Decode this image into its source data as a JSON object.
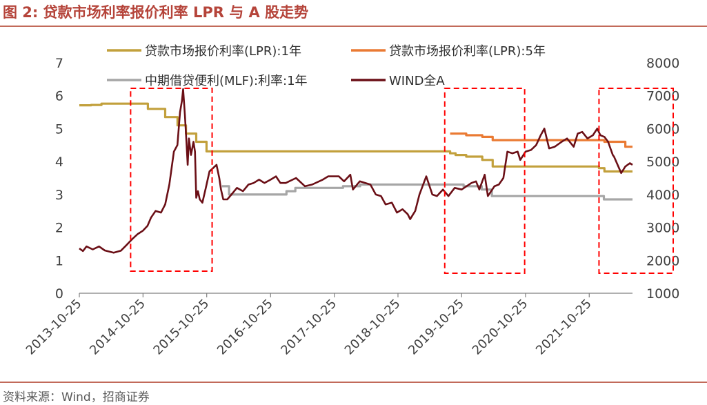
{
  "figure_title": "图 2:  贷款市场利率报价利率 LPR 与 A 股走势",
  "source": "资料来源：Wind，招商证券",
  "colors": {
    "lpr1y": "#c2a03c",
    "lpr5y": "#ea7a33",
    "mlf": "#a6a6a6",
    "wind": "#6b0f16",
    "highlight": "#ff0000",
    "axis": "#808080"
  },
  "chart_data": {
    "type": "line",
    "x_type": "date",
    "x_range": [
      "2013-10-25",
      "2022-06-30"
    ],
    "x_ticks": [
      "2013-10-25",
      "2014-10-25",
      "2015-10-25",
      "2016-10-25",
      "2017-10-25",
      "2018-10-25",
      "2019-10-25",
      "2020-10-25",
      "2021-10-25"
    ],
    "y_left": {
      "min": 0,
      "max": 7,
      "ticks": [
        0,
        1,
        2,
        3,
        4,
        5,
        6,
        7
      ]
    },
    "y_right": {
      "min": 1000,
      "max": 8000,
      "ticks": [
        1000,
        2000,
        3000,
        4000,
        5000,
        6000,
        7000,
        8000
      ]
    },
    "grid": false,
    "legend_position": "top",
    "highlight_ranges": [
      [
        "2014-08-15",
        "2015-11-25"
      ],
      [
        "2019-07-20",
        "2020-10-20"
      ],
      [
        "2021-12-20",
        "2022-06-30"
      ]
    ],
    "series": [
      {
        "name": "贷款市场报价利率(LPR):1年",
        "axis": "left",
        "step": true,
        "points": [
          [
            "2013-10-25",
            5.71
          ],
          [
            "2014-01-01",
            5.72
          ],
          [
            "2014-03-01",
            5.76
          ],
          [
            "2014-11-22",
            5.6
          ],
          [
            "2015-03-01",
            5.35
          ],
          [
            "2015-05-11",
            5.1
          ],
          [
            "2015-06-28",
            4.85
          ],
          [
            "2015-08-26",
            4.6
          ],
          [
            "2015-10-24",
            4.31
          ],
          [
            "2017-10-01",
            4.31
          ],
          [
            "2018-06-01",
            4.31
          ],
          [
            "2019-08-20",
            4.25
          ],
          [
            "2019-09-20",
            4.2
          ],
          [
            "2019-11-20",
            4.15
          ],
          [
            "2020-02-20",
            4.05
          ],
          [
            "2020-04-20",
            3.85
          ],
          [
            "2021-12-20",
            3.8
          ],
          [
            "2022-01-20",
            3.7
          ],
          [
            "2022-06-30",
            3.7
          ]
        ]
      },
      {
        "name": "贷款市场报价利率(LPR):5年",
        "axis": "left",
        "step": true,
        "points": [
          [
            "2019-08-20",
            4.85
          ],
          [
            "2019-11-20",
            4.8
          ],
          [
            "2020-02-20",
            4.75
          ],
          [
            "2020-04-20",
            4.65
          ],
          [
            "2022-01-20",
            4.6
          ],
          [
            "2022-05-20",
            4.45
          ],
          [
            "2022-06-30",
            4.45
          ]
        ]
      },
      {
        "name": "中期借贷便利(MLF):利率:1年",
        "axis": "left",
        "step": true,
        "points": [
          [
            "2016-01-20",
            3.25
          ],
          [
            "2016-03-01",
            3.0
          ],
          [
            "2017-01-24",
            3.1
          ],
          [
            "2017-03-16",
            3.2
          ],
          [
            "2017-12-14",
            3.25
          ],
          [
            "2018-03-22",
            3.3
          ],
          [
            "2019-11-05",
            3.25
          ],
          [
            "2020-02-17",
            3.15
          ],
          [
            "2020-04-15",
            2.95
          ],
          [
            "2022-01-17",
            2.85
          ],
          [
            "2022-06-30",
            2.85
          ]
        ]
      },
      {
        "name": "WIND全A",
        "axis": "right",
        "step": false,
        "points": [
          [
            "2013-10-25",
            2360
          ],
          [
            "2013-11-15",
            2280
          ],
          [
            "2013-12-05",
            2420
          ],
          [
            "2014-01-10",
            2330
          ],
          [
            "2014-02-15",
            2420
          ],
          [
            "2014-03-20",
            2300
          ],
          [
            "2014-05-10",
            2230
          ],
          [
            "2014-06-20",
            2290
          ],
          [
            "2014-07-20",
            2450
          ],
          [
            "2014-08-25",
            2650
          ],
          [
            "2014-09-25",
            2800
          ],
          [
            "2014-10-25",
            2900
          ],
          [
            "2014-11-20",
            3050
          ],
          [
            "2014-12-10",
            3300
          ],
          [
            "2015-01-05",
            3500
          ],
          [
            "2015-02-05",
            3450
          ],
          [
            "2015-03-01",
            3700
          ],
          [
            "2015-03-25",
            4300
          ],
          [
            "2015-04-20",
            5300
          ],
          [
            "2015-05-10",
            5500
          ],
          [
            "2015-05-25",
            6500
          ],
          [
            "2015-06-05",
            6850
          ],
          [
            "2015-06-12",
            7200
          ],
          [
            "2015-06-22",
            6400
          ],
          [
            "2015-07-01",
            5600
          ],
          [
            "2015-07-08",
            4900
          ],
          [
            "2015-07-15",
            5700
          ],
          [
            "2015-07-27",
            5200
          ],
          [
            "2015-08-10",
            5600
          ],
          [
            "2015-08-19",
            5300
          ],
          [
            "2015-08-26",
            3900
          ],
          [
            "2015-09-05",
            4100
          ],
          [
            "2015-09-15",
            3850
          ],
          [
            "2015-09-30",
            3750
          ],
          [
            "2015-10-20",
            4200
          ],
          [
            "2015-11-10",
            4700
          ],
          [
            "2015-12-20",
            4900
          ],
          [
            "2016-01-05",
            4500
          ],
          [
            "2016-01-15",
            4150
          ],
          [
            "2016-01-28",
            3850
          ],
          [
            "2016-02-20",
            3850
          ],
          [
            "2016-03-15",
            4000
          ],
          [
            "2016-04-15",
            4200
          ],
          [
            "2016-05-20",
            4100
          ],
          [
            "2016-06-20",
            4300
          ],
          [
            "2016-07-20",
            4350
          ],
          [
            "2016-08-20",
            4450
          ],
          [
            "2016-09-20",
            4350
          ],
          [
            "2016-10-25",
            4450
          ],
          [
            "2016-11-25",
            4550
          ],
          [
            "2016-12-20",
            4350
          ],
          [
            "2017-01-20",
            4350
          ],
          [
            "2017-03-20",
            4500
          ],
          [
            "2017-05-10",
            4250
          ],
          [
            "2017-06-20",
            4300
          ],
          [
            "2017-08-20",
            4450
          ],
          [
            "2017-09-20",
            4550
          ],
          [
            "2017-11-20",
            4550
          ],
          [
            "2017-12-20",
            4400
          ],
          [
            "2018-01-25",
            4600
          ],
          [
            "2018-02-09",
            4150
          ],
          [
            "2018-03-20",
            4400
          ],
          [
            "2018-05-20",
            4300
          ],
          [
            "2018-06-20",
            4000
          ],
          [
            "2018-07-20",
            3950
          ],
          [
            "2018-08-15",
            3700
          ],
          [
            "2018-09-20",
            3750
          ],
          [
            "2018-10-19",
            3450
          ],
          [
            "2018-11-20",
            3550
          ],
          [
            "2018-12-20",
            3400
          ],
          [
            "2019-01-03",
            3250
          ],
          [
            "2019-02-01",
            3500
          ],
          [
            "2019-02-25",
            4000
          ],
          [
            "2019-04-05",
            4550
          ],
          [
            "2019-05-10",
            4000
          ],
          [
            "2019-06-05",
            3950
          ],
          [
            "2019-07-10",
            4150
          ],
          [
            "2019-08-10",
            3950
          ],
          [
            "2019-09-15",
            4200
          ],
          [
            "2019-10-25",
            4150
          ],
          [
            "2019-12-20",
            4350
          ],
          [
            "2020-01-15",
            4400
          ],
          [
            "2020-02-03",
            4150
          ],
          [
            "2020-03-05",
            4600
          ],
          [
            "2020-03-23",
            3950
          ],
          [
            "2020-04-30",
            4250
          ],
          [
            "2020-05-25",
            4300
          ],
          [
            "2020-06-20",
            4500
          ],
          [
            "2020-07-13",
            5300
          ],
          [
            "2020-08-10",
            5250
          ],
          [
            "2020-09-10",
            5300
          ],
          [
            "2020-09-25",
            5050
          ],
          [
            "2020-10-25",
            5300
          ],
          [
            "2020-11-25",
            5350
          ],
          [
            "2020-12-25",
            5500
          ],
          [
            "2021-01-20",
            5800
          ],
          [
            "2021-02-10",
            6000
          ],
          [
            "2021-03-09",
            5400
          ],
          [
            "2021-04-10",
            5450
          ],
          [
            "2021-05-20",
            5600
          ],
          [
            "2021-06-20",
            5700
          ],
          [
            "2021-07-28",
            5450
          ],
          [
            "2021-08-20",
            5850
          ],
          [
            "2021-09-15",
            5900
          ],
          [
            "2021-10-15",
            5700
          ],
          [
            "2021-11-15",
            5800
          ],
          [
            "2021-12-10",
            6000
          ],
          [
            "2021-12-28",
            5800
          ],
          [
            "2022-01-20",
            5750
          ],
          [
            "2022-02-10",
            5600
          ],
          [
            "2022-03-09",
            5200
          ],
          [
            "2022-03-16",
            5150
          ],
          [
            "2022-04-26",
            4650
          ],
          [
            "2022-05-20",
            4850
          ],
          [
            "2022-06-15",
            4950
          ],
          [
            "2022-06-30",
            4900
          ]
        ]
      }
    ]
  }
}
